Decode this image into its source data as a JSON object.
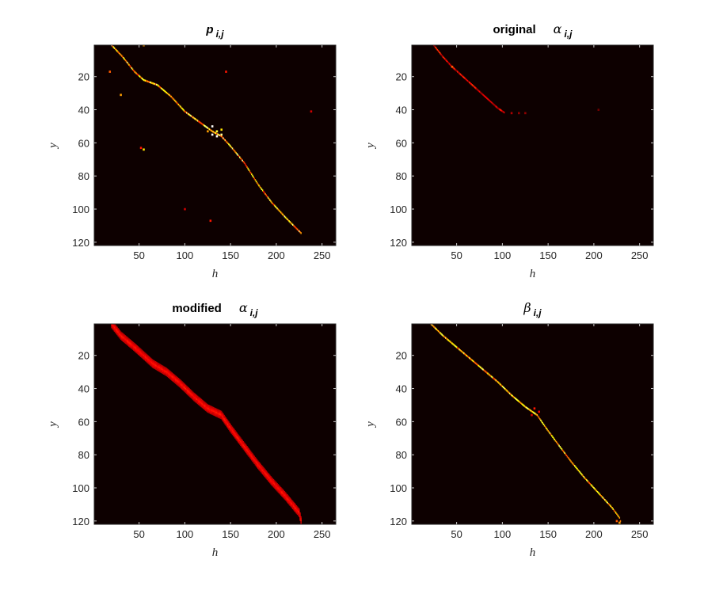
{
  "chart_data": [
    {
      "type": "heatmap",
      "title_parts": [
        {
          "text": "p",
          "style": "bold-italic"
        },
        {
          "text": "i,j",
          "style": "subscript"
        }
      ],
      "xlabel": "h",
      "ylabel": "y",
      "xlim": [
        1,
        265
      ],
      "ylim": [
        122,
        1
      ],
      "xticks": [
        50,
        100,
        150,
        200,
        250
      ],
      "yticks": [
        20,
        40,
        60,
        80,
        100,
        120
      ],
      "colormap": "hot",
      "background_color": "#0d0000",
      "path": [
        [
          20,
          1
        ],
        [
          32,
          8
        ],
        [
          45,
          17
        ],
        [
          55,
          22
        ],
        [
          70,
          25
        ],
        [
          85,
          32
        ],
        [
          100,
          41
        ],
        [
          115,
          47
        ],
        [
          130,
          53
        ],
        [
          140,
          56
        ],
        [
          150,
          62
        ],
        [
          165,
          72
        ],
        [
          180,
          85
        ],
        [
          195,
          96
        ],
        [
          210,
          105
        ],
        [
          228,
          115
        ]
      ],
      "width": 1.2,
      "intensity": 0.9,
      "speckle": 0.55,
      "spots": [
        [
          52,
          0,
          0.8
        ],
        [
          55,
          1,
          0.6
        ],
        [
          18,
          17,
          0.5
        ],
        [
          30,
          31,
          0.6
        ],
        [
          55,
          64,
          0.7
        ],
        [
          52,
          63,
          0.4
        ],
        [
          100,
          100,
          0.3
        ],
        [
          145,
          17,
          0.4
        ],
        [
          128,
          107,
          0.4
        ],
        [
          238,
          41,
          0.3
        ],
        [
          130,
          50,
          1.0
        ],
        [
          130,
          55,
          1.0
        ],
        [
          135,
          56,
          1.0
        ],
        [
          140,
          55,
          0.9
        ],
        [
          135,
          53,
          0.8
        ],
        [
          140,
          52,
          0.7
        ],
        [
          125,
          53,
          0.6
        ]
      ]
    },
    {
      "type": "heatmap",
      "title_parts": [
        {
          "text": "original",
          "style": "bold"
        },
        {
          "text": "α",
          "style": "symbol"
        },
        {
          "text": "i,j",
          "style": "subscript"
        }
      ],
      "xlabel": "h",
      "ylabel": "y",
      "xlim": [
        1,
        265
      ],
      "ylim": [
        122,
        1
      ],
      "xticks": [
        50,
        100,
        150,
        200,
        250
      ],
      "yticks": [
        20,
        40,
        60,
        80,
        100,
        120
      ],
      "colormap": "hot",
      "background_color": "#0d0000",
      "path": [
        [
          25,
          1
        ],
        [
          35,
          8
        ],
        [
          45,
          14
        ],
        [
          55,
          19
        ],
        [
          65,
          24
        ],
        [
          75,
          29
        ],
        [
          85,
          34
        ],
        [
          95,
          39
        ],
        [
          103,
          42
        ]
      ],
      "width": 1.2,
      "intensity": 0.45,
      "speckle": 0.5,
      "spots": [
        [
          110,
          42,
          0.25
        ],
        [
          118,
          42,
          0.2
        ],
        [
          125,
          42,
          0.2
        ],
        [
          45,
          14,
          0.5
        ],
        [
          205,
          40,
          0.15
        ]
      ]
    },
    {
      "type": "heatmap",
      "title_parts": [
        {
          "text": "modified",
          "style": "bold"
        },
        {
          "text": "α",
          "style": "symbol"
        },
        {
          "text": "i,j",
          "style": "subscript"
        }
      ],
      "xlabel": "h",
      "ylabel": "y",
      "xlim": [
        1,
        265
      ],
      "ylim": [
        122,
        1
      ],
      "xticks": [
        50,
        100,
        150,
        200,
        250
      ],
      "yticks": [
        20,
        40,
        60,
        80,
        100,
        120
      ],
      "colormap": "hot",
      "background_color": "#0d0000",
      "path": [
        [
          20,
          1
        ],
        [
          30,
          8
        ],
        [
          45,
          15
        ],
        [
          55,
          20
        ],
        [
          65,
          25
        ],
        [
          80,
          30
        ],
        [
          95,
          37
        ],
        [
          110,
          45
        ],
        [
          125,
          52
        ],
        [
          140,
          56
        ],
        [
          150,
          64
        ],
        [
          165,
          75
        ],
        [
          180,
          86
        ],
        [
          195,
          96
        ],
        [
          210,
          105
        ],
        [
          225,
          115
        ],
        [
          228,
          122
        ]
      ],
      "width": 5,
      "intensity": 0.42,
      "speckle": 0.15,
      "spots": []
    },
    {
      "type": "heatmap",
      "title_parts": [
        {
          "text": "β",
          "style": "symbol"
        },
        {
          "text": "i,j",
          "style": "subscript"
        }
      ],
      "xlabel": "h",
      "ylabel": "y",
      "xlim": [
        1,
        265
      ],
      "ylim": [
        122,
        1
      ],
      "xticks": [
        50,
        100,
        150,
        200,
        250
      ],
      "yticks": [
        20,
        40,
        60,
        80,
        100,
        120
      ],
      "colormap": "hot",
      "background_color": "#0d0000",
      "path": [
        [
          22,
          1
        ],
        [
          35,
          8
        ],
        [
          50,
          15
        ],
        [
          65,
          22
        ],
        [
          80,
          29
        ],
        [
          95,
          36
        ],
        [
          110,
          44
        ],
        [
          125,
          51
        ],
        [
          138,
          56
        ],
        [
          148,
          64
        ],
        [
          160,
          73
        ],
        [
          175,
          84
        ],
        [
          190,
          94
        ],
        [
          205,
          103
        ],
        [
          220,
          112
        ],
        [
          228,
          118
        ],
        [
          230,
          122
        ]
      ],
      "width": 1,
      "intensity": 0.85,
      "speckle": 0.45,
      "spots": [
        [
          135,
          52,
          0.4
        ],
        [
          140,
          54,
          0.35
        ],
        [
          132,
          56,
          0.3
        ],
        [
          225,
          120,
          0.5
        ],
        [
          228,
          121,
          0.6
        ]
      ]
    }
  ]
}
